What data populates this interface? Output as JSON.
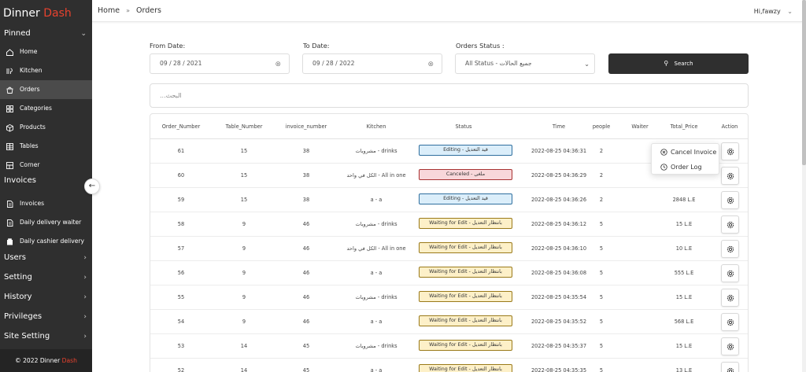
{
  "sidebar": {
    "brand_main": "Dinner",
    "brand_accent": "Dash",
    "pinned_label": "Pinned",
    "items": [
      {
        "label": "Home",
        "icon": "home-icon"
      },
      {
        "label": "Kitchen",
        "icon": "kitchen-icon"
      },
      {
        "label": "Orders",
        "icon": "orders-icon",
        "active": true
      },
      {
        "label": "Categories",
        "icon": "categories-icon"
      },
      {
        "label": "Products",
        "icon": "products-icon"
      },
      {
        "label": "Tables",
        "icon": "tables-icon"
      },
      {
        "label": "Corner",
        "icon": "corner-icon"
      }
    ],
    "invoices_label": "Invoices",
    "invoice_items": [
      {
        "label": "Invoices",
        "icon": "invoice-icon"
      },
      {
        "label": "Daily delivery waiter",
        "icon": "delivery-icon"
      },
      {
        "label": "Daily cashier delivery",
        "icon": "cashier-icon"
      }
    ],
    "sections": [
      {
        "label": "Users"
      },
      {
        "label": "Setting"
      },
      {
        "label": "History"
      },
      {
        "label": "Privileges"
      },
      {
        "label": "Site Setting"
      }
    ],
    "footer_prefix": "© 2022 Dinner",
    "footer_accent": "Dash"
  },
  "header": {
    "crumb_home": "Home",
    "crumb_current": "Orders",
    "user": "Hi,fawzy"
  },
  "filters": {
    "from_label": "From Date:",
    "from_value": "09 / 28 / 2021",
    "to_label": "To Date:",
    "to_value": "09 / 28 / 2022",
    "status_label": "Orders Status :",
    "status_value": "All Status - جميع الحالات",
    "search_button": "Search",
    "search_placeholder": "البحث..."
  },
  "table": {
    "columns": [
      "Order_Number",
      "Table_Number",
      "invoice_number",
      "Kitchen",
      "Status",
      "Time",
      "people",
      "Waiter",
      "Total_Price",
      "Action"
    ],
    "rows": [
      {
        "order": "61",
        "table": "15",
        "invoice": "38",
        "kitchen": "مشروبات - drinks",
        "status": "Editing - قيد التعديل",
        "status_kind": "editing",
        "time": "2022-08-25 04:36:31",
        "people": "2",
        "waiter": "",
        "total": ""
      },
      {
        "order": "60",
        "table": "15",
        "invoice": "38",
        "kitchen": "الكل في واحد - All in one",
        "status": "Canceled - ملغى",
        "status_kind": "canceled",
        "time": "2022-08-25 04:36:29",
        "people": "2",
        "waiter": "",
        "total": ""
      },
      {
        "order": "59",
        "table": "15",
        "invoice": "38",
        "kitchen": "a - a",
        "status": "Editing - قيد التعديل",
        "status_kind": "editing",
        "time": "2022-08-25 04:36:26",
        "people": "2",
        "waiter": "",
        "total": "2848 L.E"
      },
      {
        "order": "58",
        "table": "9",
        "invoice": "46",
        "kitchen": "مشروبات - drinks",
        "status": "Waiting for Edit - بانتظار التعديل",
        "status_kind": "waiting",
        "time": "2022-08-25 04:36:12",
        "people": "5",
        "waiter": "",
        "total": "15 L.E"
      },
      {
        "order": "57",
        "table": "9",
        "invoice": "46",
        "kitchen": "الكل في واحد - All in one",
        "status": "Waiting for Edit - بانتظار التعديل",
        "status_kind": "waiting",
        "time": "2022-08-25 04:36:10",
        "people": "5",
        "waiter": "",
        "total": "10 L.E"
      },
      {
        "order": "56",
        "table": "9",
        "invoice": "46",
        "kitchen": "a - a",
        "status": "Waiting for Edit - بانتظار التعديل",
        "status_kind": "waiting",
        "time": "2022-08-25 04:36:08",
        "people": "5",
        "waiter": "",
        "total": "555 L.E"
      },
      {
        "order": "55",
        "table": "9",
        "invoice": "46",
        "kitchen": "مشروبات - drinks",
        "status": "Waiting for Edit - بانتظار التعديل",
        "status_kind": "waiting",
        "time": "2022-08-25 04:35:54",
        "people": "5",
        "waiter": "",
        "total": "15 L.E"
      },
      {
        "order": "54",
        "table": "9",
        "invoice": "46",
        "kitchen": "a - a",
        "status": "Waiting for Edit - بانتظار التعديل",
        "status_kind": "waiting",
        "time": "2022-08-25 04:35:52",
        "people": "5",
        "waiter": "",
        "total": "568 L.E"
      },
      {
        "order": "53",
        "table": "14",
        "invoice": "45",
        "kitchen": "مشروبات - drinks",
        "status": "Waiting for Edit - بانتظار التعديل",
        "status_kind": "waiting",
        "time": "2022-08-25 04:35:37",
        "people": "5",
        "waiter": "",
        "total": "15 L.E"
      },
      {
        "order": "52",
        "table": "14",
        "invoice": "45",
        "kitchen": "a - a",
        "status": "Waiting for Edit - بانتظار التعديل",
        "status_kind": "waiting",
        "time": "2022-08-25 04:35:35",
        "people": "5",
        "waiter": "",
        "total": "13 L.E"
      }
    ]
  },
  "popup_menu": {
    "items": [
      {
        "label": "Cancel Invoice",
        "icon": "cancel-circle-icon"
      },
      {
        "label": "Order Log",
        "icon": "clock-icon"
      }
    ]
  },
  "colors": {
    "sidebar_bg": "#2f2f2f",
    "accent": "#e8422e",
    "editing_bg": "#dbeefa",
    "editing_border": "#2f6f9f",
    "canceled_bg": "#f8d7da",
    "canceled_border": "#a83232",
    "waiting_bg": "#fdf0c8",
    "waiting_border": "#9a7a1a"
  }
}
